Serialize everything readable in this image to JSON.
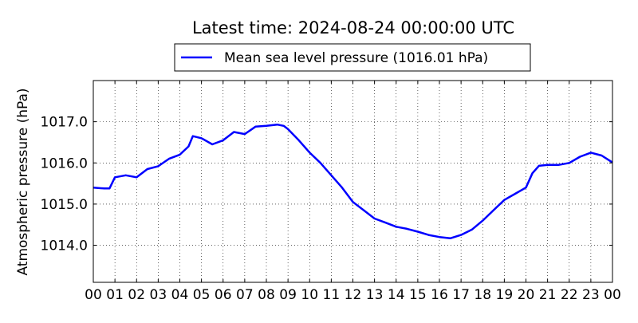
{
  "chart_data": {
    "type": "line",
    "title": "Latest time: 2024-08-24 00:00:00 UTC",
    "xlabel": "",
    "ylabel": "Atmospheric pressure (hPa)",
    "xlim": [
      0,
      24
    ],
    "ylim": [
      1013.1,
      1018.0
    ],
    "x_ticks": [
      0,
      1,
      2,
      3,
      4,
      5,
      6,
      7,
      8,
      9,
      10,
      11,
      12,
      13,
      14,
      15,
      16,
      17,
      18,
      19,
      20,
      21,
      22,
      23,
      24
    ],
    "x_tick_labels": [
      "00",
      "01",
      "02",
      "03",
      "04",
      "05",
      "06",
      "07",
      "08",
      "09",
      "10",
      "11",
      "12",
      "13",
      "14",
      "15",
      "16",
      "17",
      "18",
      "19",
      "20",
      "21",
      "22",
      "23",
      "00"
    ],
    "y_ticks": [
      1014.0,
      1015.0,
      1016.0,
      1017.0
    ],
    "y_tick_labels": [
      "1014.0",
      "1015.0",
      "1016.0",
      "1017.0"
    ],
    "grid": true,
    "legend_position": "top-center",
    "series": [
      {
        "name": "Mean sea level pressure (1016.01 hPa)",
        "color": "#0000ff",
        "x": [
          0,
          0.5,
          0.75,
          1.0,
          1.5,
          2.0,
          2.5,
          3.0,
          3.5,
          4.0,
          4.4,
          4.6,
          5.0,
          5.5,
          6.0,
          6.5,
          7.0,
          7.5,
          8.0,
          8.5,
          8.8,
          9.0,
          9.5,
          10.0,
          10.5,
          11.0,
          11.5,
          12.0,
          12.5,
          13.0,
          13.5,
          14.0,
          14.5,
          15.0,
          15.5,
          16.0,
          16.5,
          17.0,
          17.5,
          18.0,
          18.5,
          19.0,
          19.5,
          20.0,
          20.3,
          20.6,
          21.0,
          21.5,
          22.0,
          22.5,
          23.0,
          23.5,
          24.0
        ],
        "values": [
          1015.4,
          1015.38,
          1015.38,
          1015.65,
          1015.7,
          1015.65,
          1015.85,
          1015.92,
          1016.1,
          1016.2,
          1016.4,
          1016.65,
          1016.6,
          1016.45,
          1016.55,
          1016.75,
          1016.7,
          1016.88,
          1016.9,
          1016.93,
          1016.9,
          1016.82,
          1016.55,
          1016.25,
          1016.0,
          1015.7,
          1015.4,
          1015.05,
          1014.85,
          1014.65,
          1014.55,
          1014.45,
          1014.4,
          1014.33,
          1014.25,
          1014.2,
          1014.17,
          1014.25,
          1014.38,
          1014.6,
          1014.85,
          1015.1,
          1015.25,
          1015.4,
          1015.75,
          1015.93,
          1015.95,
          1015.95,
          1016.0,
          1016.15,
          1016.25,
          1016.18,
          1016.01
        ]
      }
    ]
  }
}
